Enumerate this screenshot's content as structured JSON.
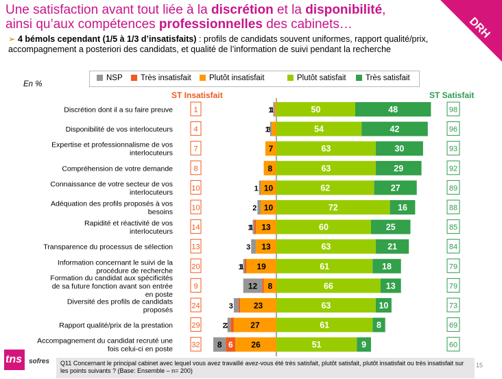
{
  "title": {
    "line1_pre": "Une satisfaction avant tout liée à la ",
    "line1_b1": "discrétion",
    "line1_mid": " et la ",
    "line1_b2": "disponibilité",
    "line1_end": ",",
    "line2_pre": "ainsi qu’aux compétences ",
    "line2_b": "professionnelles",
    "line2_end": " des cabinets…"
  },
  "bullet": {
    "arrow": "➢",
    "bold": "4 bémols cependant (1/5 à 1/3 d’insatisfaits)",
    "text": " : profils de candidats souvent uniformes, rapport qualité/prix, accompagnement a posteriori des candidats, et qualité de l’information de suivi pendant la recherche"
  },
  "corner_label": "DRH",
  "en_pct": "En %",
  "st_insat": "ST Insatisfait",
  "st_sat": "ST Satisfait",
  "footer": "Q11 Concernant le principal cabinet avec lequel vous avez travaillé avez-vous été très satisfait, plutôt satisfait,  plutôt insatisfait ou très insatisfait sur les points suivants ? (Base: Ensemble – n= 200)",
  "page_number": "15",
  "logo": {
    "tns": "tns",
    "sofres": "sofres"
  },
  "colors": {
    "title": "#c8148c",
    "nsp": "#969696",
    "tres_insat": "#f05a1e",
    "plutot_insat": "#ff9a00",
    "plutot_sat": "#99cc00",
    "tres_sat": "#33a04a",
    "st_insat_border": "#f05a1e",
    "st_sat_border": "#2e9a4e"
  },
  "chart_data": {
    "type": "bar",
    "layout": "diverging-stacked-horizontal",
    "legend": [
      "NSP",
      "Très insatisfait",
      "Plutôt  insatisfait",
      "Plutôt satisfait",
      "Très satisfait"
    ],
    "legend_position": "top",
    "categories": [
      "Discrétion dont il a su faire preuve",
      "Disponibilité de vos interlocuteurs",
      "Expertise et professionnalisme de vos interlocuteurs",
      "Compréhension de votre demande",
      "Connaissance de votre secteur de vos interlocuteurs",
      "Adéquation des profils proposés à vos besoins",
      "Rapidité et réactivité de vos interlocuteurs",
      "Transparence du processus de sélection",
      "Information concernant le suivi de la procédure de recherche",
      "Formation du candidat aux spécificités de sa future fonction avant son entrée en poste",
      "Diversité des profils de candidats proposés",
      "Rapport qualité/prix de la prestation",
      "Accompagnement du candidat recruté une fois celui-ci en poste"
    ],
    "series": [
      {
        "name": "NSP",
        "values": [
          1,
          1,
          null,
          null,
          1,
          2,
          1,
          3,
          1,
          12,
          3,
          2,
          8
        ]
      },
      {
        "name": "Très insatisfait",
        "values": [
          null,
          null,
          null,
          null,
          null,
          null,
          1,
          null,
          1,
          1,
          1,
          2,
          6
        ]
      },
      {
        "name": "Plutôt  insatisfait",
        "values": [
          1,
          3,
          7,
          8,
          10,
          10,
          13,
          13,
          19,
          8,
          23,
          27,
          26
        ]
      },
      {
        "name": "Plutôt satisfait",
        "values": [
          50,
          54,
          63,
          63,
          62,
          72,
          60,
          63,
          61,
          66,
          63,
          61,
          51
        ]
      },
      {
        "name": "Très satisfait",
        "values": [
          48,
          42,
          30,
          29,
          27,
          16,
          25,
          21,
          18,
          13,
          10,
          8,
          9
        ]
      }
    ],
    "st_insatisfait": [
      1,
      4,
      7,
      8,
      10,
      10,
      14,
      13,
      20,
      9,
      24,
      29,
      32
    ],
    "st_satisfait": [
      98,
      96,
      93,
      92,
      89,
      88,
      85,
      84,
      79,
      79,
      73,
      69,
      60
    ]
  }
}
